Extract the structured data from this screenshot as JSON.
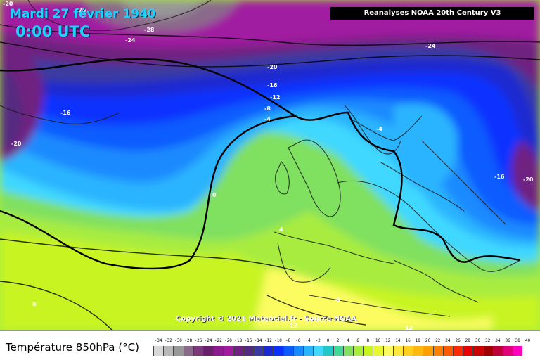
{
  "header": {
    "date": "Mardi 27 février 1940",
    "time": "0:00 UTC",
    "source": "Reanalyses NOAA 20th Century V3"
  },
  "map": {
    "copyright": "Copyright © 2021 Meteociel.fr - Source NOAA",
    "contour_labels": [
      "-20",
      "-28",
      "-28",
      "-24",
      "-24",
      "-20",
      "-16",
      "-12",
      "-8",
      "-4",
      "0",
      "4",
      "8",
      "8",
      "12",
      "12",
      "-4",
      "-16",
      "-20",
      "-20",
      "-16"
    ]
  },
  "legend": {
    "title": "Température 850hPa (°C)",
    "ticks": [
      "-34",
      "-32",
      "-30",
      "-28",
      "-26",
      "-24",
      "-22",
      "-20",
      "-18",
      "-16",
      "-14",
      "-12",
      "-10",
      "-8",
      "-6",
      "-4",
      "-2",
      "0",
      "2",
      "4",
      "6",
      "8",
      "10",
      "12",
      "14",
      "16",
      "18",
      "20",
      "22",
      "24",
      "26",
      "28",
      "30",
      "32",
      "34",
      "36",
      "38",
      "40"
    ],
    "colors": [
      "#d8d8d8",
      "#b8b8b8",
      "#989898",
      "#8a6a8a",
      "#7a3a7a",
      "#6b1f6b",
      "#8c1a8c",
      "#a01aa0",
      "#702080",
      "#542a80",
      "#3a3aa0",
      "#1a2ad0",
      "#0a30ff",
      "#0a5cff",
      "#1a8aff",
      "#2ab4ff",
      "#40d8ff",
      "#20c8c8",
      "#40d898",
      "#80e060",
      "#a8ec40",
      "#c8f420",
      "#e8f830",
      "#fcfc60",
      "#ffe840",
      "#ffd020",
      "#ffb810",
      "#ffa000",
      "#ff8000",
      "#ff5a00",
      "#ff2a00",
      "#e80000",
      "#c80000",
      "#a00000",
      "#c0003a",
      "#e0007a",
      "#ff00c0"
    ]
  }
}
